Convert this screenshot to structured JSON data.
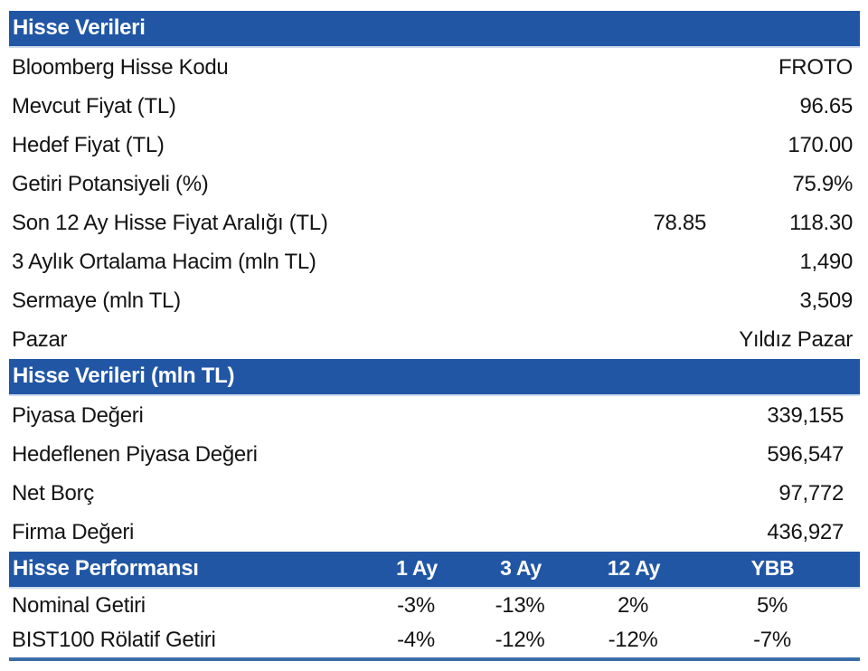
{
  "colors": {
    "header_bg": "#2156A5",
    "header_text": "#ffffff",
    "bottom_line": "#3A6EA8",
    "body_text": "#141414"
  },
  "section1": {
    "title": "Hisse Verileri",
    "rows": [
      {
        "label": "Bloomberg Hisse Kodu",
        "value": "FROTO"
      },
      {
        "label": "Mevcut Fiyat (TL)",
        "value": "96.65"
      },
      {
        "label": "Hedef Fiyat (TL)",
        "value": "170.00"
      },
      {
        "label": "Getiri Potansiyeli (%)",
        "value": "75.9%"
      },
      {
        "label": "Son 12 Ay Hisse Fiyat Aralığı (TL)",
        "value_low": "78.85",
        "value": "118.30"
      },
      {
        "label": "3 Aylık Ortalama Hacim (mln TL)",
        "value": "1,490"
      },
      {
        "label": "Sermaye (mln TL)",
        "value": "3,509"
      },
      {
        "label": "Pazar",
        "value": "Yıldız Pazar"
      }
    ]
  },
  "section2": {
    "title": "Hisse Verileri (mln TL)",
    "rows": [
      {
        "label": "Piyasa Değeri",
        "value": "339,155"
      },
      {
        "label": "Hedeflenen Piyasa Değeri",
        "value": "596,547"
      },
      {
        "label": "Net Borç",
        "value": "97,772"
      },
      {
        "label": "Firma Değeri",
        "value": "436,927"
      }
    ]
  },
  "performance": {
    "title": "Hisse Performansı",
    "columns": [
      "1 Ay",
      "3 Ay",
      "12 Ay",
      "YBB"
    ],
    "rows": [
      {
        "label": "Nominal Getiri",
        "values": [
          "-3%",
          "-13%",
          "2%",
          "5%"
        ]
      },
      {
        "label": "BIST100 Rölatif Getiri",
        "values": [
          "-4%",
          "-12%",
          "-12%",
          "-7%"
        ]
      }
    ]
  }
}
